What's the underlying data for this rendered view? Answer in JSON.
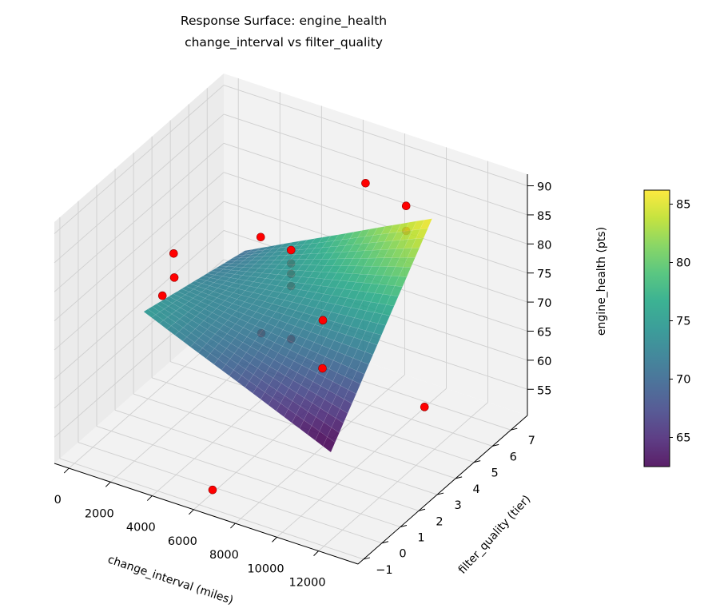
{
  "chart_data": {
    "type": "surface3d",
    "title": "Response Surface: engine_health",
    "subtitle": "change_interval vs filter_quality",
    "xlabel": "change_interval (miles)",
    "ylabel": "filter_quality (tier)",
    "zlabel": "engine_health (pts)",
    "xlim": [
      -700,
      13900
    ],
    "ylim": [
      -1.3,
      7.9
    ],
    "zlim": [
      50.5,
      92
    ],
    "xticks": [
      0,
      2000,
      4000,
      6000,
      8000,
      10000,
      12000
    ],
    "yticks": [
      -1,
      0,
      1,
      2,
      3,
      4,
      5,
      6,
      7
    ],
    "zticks": [
      55,
      60,
      65,
      70,
      75,
      80,
      85,
      90
    ],
    "ytick_labels": [
      "−1",
      "0",
      "1",
      "2",
      "3",
      "4",
      "5",
      "6",
      "7"
    ],
    "grid": true,
    "colormap": "viridis",
    "colorbar": {
      "range": [
        62.5,
        86.2
      ],
      "ticks": [
        65,
        70,
        75,
        80,
        85
      ]
    },
    "surface": {
      "x": [
        2000,
        4250,
        6500,
        8750,
        11000
      ],
      "y": [
        0.5,
        1.875,
        3.25,
        4.625,
        6
      ],
      "z": [
        [
          74.8,
          71.4,
          68.1,
          64.7,
          61.3
        ],
        [
          73.6,
          72.1,
          70.6,
          69.1,
          67.5
        ],
        [
          72.4,
          72.7,
          73.1,
          73.4,
          73.8
        ],
        [
          71.2,
          73.4,
          75.6,
          77.8,
          80.0
        ],
        [
          70.0,
          74.1,
          78.1,
          82.2,
          86.2
        ]
      ],
      "alpha": 0.88
    },
    "scatter": {
      "color": "#ff0000",
      "points": [
        {
          "x": 7800,
          "y": 6,
          "z": 88.5,
          "behind_surface": false
        },
        {
          "x": 9750,
          "y": 6,
          "z": 86.9,
          "behind_surface": false
        },
        {
          "x": 9750,
          "y": 6,
          "z": 82.6,
          "behind_surface": true
        },
        {
          "x": 4530,
          "y": 4,
          "z": 80.9,
          "behind_surface": false
        },
        {
          "x": 5990,
          "y": 4,
          "z": 80.4,
          "behind_surface": false
        },
        {
          "x": 5990,
          "y": 4,
          "z": 78.1,
          "behind_surface": true
        },
        {
          "x": 5990,
          "y": 4,
          "z": 76.3,
          "behind_surface": true
        },
        {
          "x": 5990,
          "y": 4,
          "z": 74.2,
          "behind_surface": true
        },
        {
          "x": 5990,
          "y": 4,
          "z": 65.1,
          "behind_surface": true
        },
        {
          "x": 4560,
          "y": 4,
          "z": 64.4,
          "behind_surface": true
        },
        {
          "x": 3000,
          "y": 1,
          "z": 84.6,
          "behind_surface": false
        },
        {
          "x": 3030,
          "y": 1,
          "z": 80.5,
          "behind_surface": false
        },
        {
          "x": 2460,
          "y": 1,
          "z": 76.7,
          "behind_surface": false
        },
        {
          "x": 9290,
          "y": 2,
          "z": 77.8,
          "behind_surface": false
        },
        {
          "x": 9270,
          "y": 2,
          "z": 69.5,
          "behind_surface": false
        },
        {
          "x": 11520,
          "y": 5,
          "z": 57.2,
          "behind_surface": false
        },
        {
          "x": 6200,
          "y": -0.5,
          "z": 51.9,
          "behind_surface": false
        }
      ]
    }
  }
}
